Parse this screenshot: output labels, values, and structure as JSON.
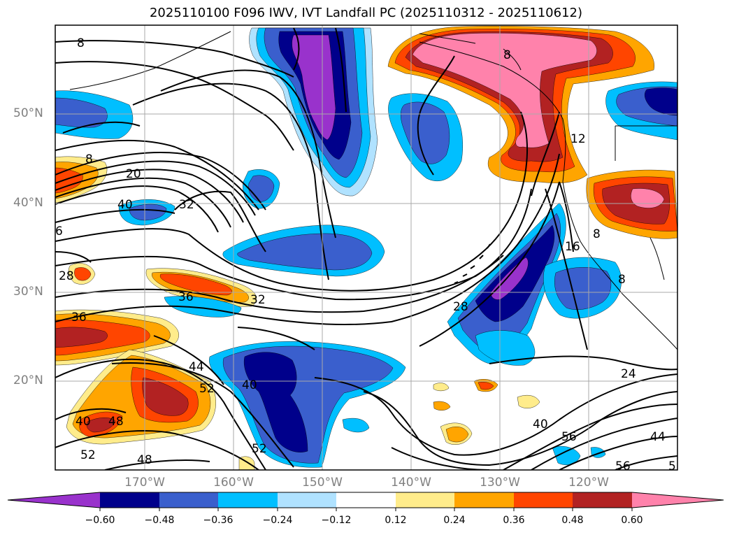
{
  "title": "2025110100 F096 IWV, IVT Landfall PC (2025110312 - 2025110612)",
  "lat_labels": [
    "50°N",
    "40°N",
    "30°N",
    "20°N"
  ],
  "lon_labels": [
    "170°W",
    "160°W",
    "150°W",
    "140°W",
    "130°W",
    "120°W"
  ],
  "contour_labels": [
    "8",
    "8",
    "8",
    "20",
    "40",
    "32",
    "6",
    "28",
    "36",
    "32",
    "36",
    "44",
    "52",
    "40",
    "48",
    "52",
    "48",
    "52",
    "28",
    "16",
    "8",
    "8",
    "12",
    "24",
    "40",
    "56",
    "44",
    "56",
    "5",
    "40"
  ],
  "colorbar": {
    "ticks": [
      "−0.60",
      "−0.48",
      "−0.36",
      "−0.24",
      "−0.12",
      "0.12",
      "0.24",
      "0.36",
      "0.48",
      "0.60"
    ],
    "colors": [
      "#9932cc",
      "#00008b",
      "#3a5fcd",
      "#00bfff",
      "#b0e2ff",
      "#ffffff",
      "#ffec8b",
      "#ffa500",
      "#ff4500",
      "#b22222",
      "#ff82ab"
    ]
  },
  "palette": {
    "purple": "#9932cc",
    "navy": "#00008b",
    "royal": "#3a5fcd",
    "sky": "#00bfff",
    "light_blue": "#b0e2ff",
    "yellow": "#ffec8b",
    "orange": "#ffa500",
    "red_orange": "#ff4500",
    "firebrick": "#b22222",
    "pink": "#ff82ab"
  }
}
